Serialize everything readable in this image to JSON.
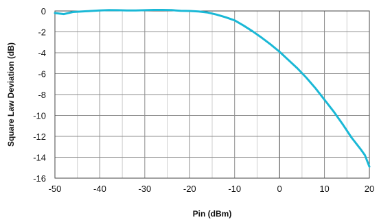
{
  "chart_data": {
    "type": "line",
    "title": "",
    "xlabel": "Pin (dBm)",
    "ylabel": "Square Law Deviation (dB)",
    "xlim": [
      -50,
      20
    ],
    "ylim": [
      -16,
      0
    ],
    "x_ticks": [
      -50,
      -40,
      -30,
      -20,
      -10,
      0,
      10,
      20
    ],
    "y_ticks": [
      0,
      -2,
      -4,
      -6,
      -8,
      -10,
      -12,
      -14,
      -16
    ],
    "x_tick_labels": [
      "-50",
      "-40",
      "-30",
      "-20",
      "-10",
      "0",
      "10",
      "20"
    ],
    "y_tick_labels": [
      "0",
      "-2",
      "-4",
      "-6",
      "-8",
      "-10",
      "-12",
      "-14",
      "-16"
    ],
    "grid": true,
    "minor_grid_x_step": 5,
    "colors": {
      "line": "#1ab8d6",
      "major_grid": "#8c8c8c",
      "minor_grid": "#cfcfcf",
      "axis": "#444444"
    },
    "series": [
      {
        "x": [
          -50,
          -48,
          -46,
          -44,
          -42,
          -40,
          -38,
          -36,
          -34,
          -32,
          -30,
          -28,
          -26,
          -24,
          -22,
          -20,
          -18,
          -16,
          -14,
          -12,
          -10,
          -8,
          -6,
          -4,
          -2,
          0,
          2,
          4,
          6,
          8,
          10,
          12,
          14,
          16,
          18,
          19,
          20
        ],
        "y": [
          -0.2,
          -0.3,
          -0.1,
          -0.05,
          0,
          0.05,
          0.08,
          0.07,
          0.05,
          0.05,
          0.07,
          0.1,
          0.1,
          0.08,
          0.02,
          0,
          -0.05,
          -0.15,
          -0.35,
          -0.6,
          -0.9,
          -1.4,
          -1.95,
          -2.55,
          -3.2,
          -3.9,
          -4.7,
          -5.5,
          -6.4,
          -7.4,
          -8.5,
          -9.6,
          -10.8,
          -12.1,
          -13.2,
          -13.8,
          -14.9
        ]
      }
    ]
  }
}
